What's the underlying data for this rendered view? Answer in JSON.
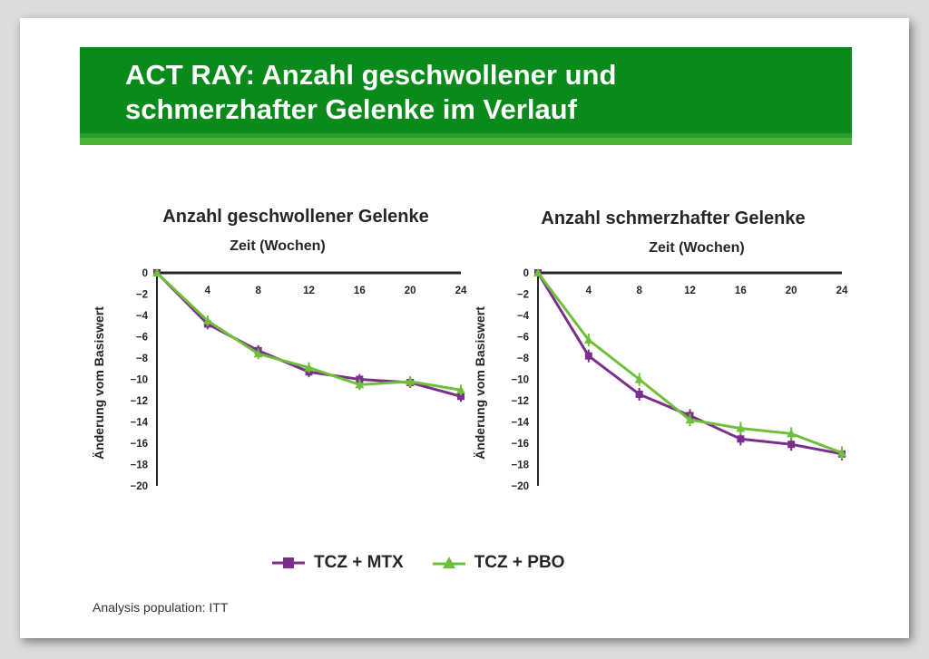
{
  "slide": {
    "title_line1": "ACT RAY: Anzahl geschwollener und",
    "title_line2": "schmerzhafter Gelenke im Verlauf",
    "footnote": "Analysis population: ITT"
  },
  "legend": [
    {
      "name": "TCZ + MTX",
      "color": "#7b2f8c",
      "marker": "square"
    },
    {
      "name": "TCZ + PBO",
      "color": "#6fbf3a",
      "marker": "triangle"
    }
  ],
  "chart_data": [
    {
      "type": "line",
      "title": "Anzahl geschwollener Gelenke",
      "xlabel": "Zeit (Wochen)",
      "ylabel": "Änderung vom Basiswert",
      "x": [
        0,
        4,
        8,
        12,
        16,
        20,
        24
      ],
      "xticks": [
        "4",
        "8",
        "12",
        "16",
        "20",
        "24"
      ],
      "yticks": [
        "0",
        "−2",
        "−4",
        "−6",
        "−8",
        "−10",
        "−12",
        "−14",
        "−16",
        "−18",
        "−20"
      ],
      "xlim": [
        0,
        24
      ],
      "ylim": [
        -20,
        0
      ],
      "series": [
        {
          "name": "TCZ + MTX",
          "values": [
            0,
            -4.8,
            -7.3,
            -9.3,
            -10.0,
            -10.3,
            -11.6
          ],
          "error": 0.5
        },
        {
          "name": "TCZ + PBO",
          "values": [
            0,
            -4.5,
            -7.6,
            -8.9,
            -10.5,
            -10.2,
            -11.0
          ],
          "error": 0.5
        }
      ]
    },
    {
      "type": "line",
      "title": "Anzahl schmerzhafter Gelenke",
      "xlabel": "Zeit (Wochen)",
      "ylabel": "Änderung vom Basiswert",
      "x": [
        0,
        4,
        8,
        12,
        16,
        20,
        24
      ],
      "xticks": [
        "4",
        "8",
        "12",
        "16",
        "20",
        "24"
      ],
      "yticks": [
        "0",
        "−2",
        "−4",
        "−6",
        "−8",
        "−10",
        "−12",
        "−14",
        "−16",
        "−18",
        "−20"
      ],
      "xlim": [
        0,
        24
      ],
      "ylim": [
        -20,
        0
      ],
      "series": [
        {
          "name": "TCZ + MTX",
          "values": [
            0,
            -7.8,
            -11.4,
            -13.4,
            -15.6,
            -16.1,
            -17.0
          ],
          "error": 0.6
        },
        {
          "name": "TCZ + PBO",
          "values": [
            0,
            -6.3,
            -10.0,
            -13.8,
            -14.6,
            -15.1,
            -16.9
          ],
          "error": 0.6
        }
      ]
    }
  ]
}
